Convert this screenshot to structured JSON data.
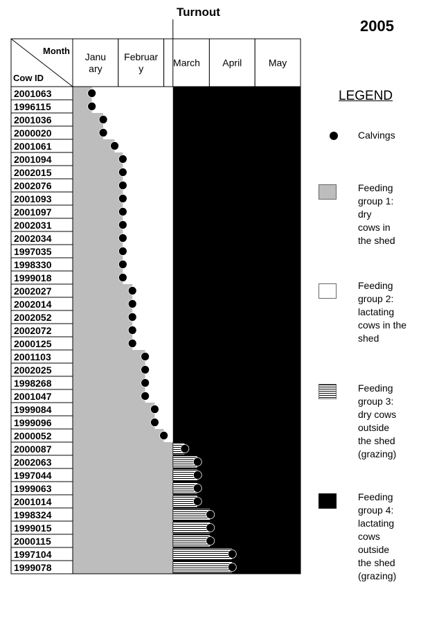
{
  "header": {
    "turnout_label": "Turnout",
    "year": "2005"
  },
  "legend": {
    "title": "LEGEND",
    "items": [
      {
        "kind": "dot",
        "label": "Calvings"
      },
      {
        "kind": "grey",
        "label": "Feeding group 1: dry cows in the shed",
        "lines": [
          "Feeding",
          "group 1:",
          "dry",
          "cows in",
          "the shed"
        ]
      },
      {
        "kind": "white",
        "label": "Feeding group 2: lactating cows in the shed",
        "lines": [
          "Feeding",
          "group 2:",
          "lactating",
          "cows in the",
          "shed"
        ]
      },
      {
        "kind": "striped",
        "label": "Feeding group 3: dry cows outside the shed (grazing)",
        "lines": [
          "Feeding",
          "group 3:",
          "dry cows",
          "outside",
          "the shed",
          "(grazing)"
        ]
      },
      {
        "kind": "black",
        "label": "Feeding group 4: lactating cows outside the shed (grazing)",
        "lines": [
          "Feeding",
          "group 4:",
          "lactating",
          "cows",
          "outside",
          "the shed",
          "(grazing)"
        ]
      }
    ]
  },
  "colors": {
    "group1": "#bdbdbd",
    "group2": "#ffffff",
    "group3_stripe": "#000000",
    "group4": "#000000"
  },
  "chart_data": {
    "type": "table",
    "corner_top": "Month",
    "corner_bottom": "Cow ID",
    "month_headers": [
      {
        "lines": [
          "Janu",
          "ary"
        ]
      },
      {
        "lines": [
          "Februar",
          "y"
        ]
      },
      {
        "lines": [
          "March"
        ]
      },
      {
        "lines": [
          "April"
        ]
      },
      {
        "lines": [
          "May"
        ]
      }
    ],
    "x_unit": "months since 1 January (0 = start of January, 5 = end of May)",
    "turnout_month": 2.2,
    "cows": [
      {
        "id": "2001063",
        "calving": 0.42
      },
      {
        "id": "1996115",
        "calving": 0.42
      },
      {
        "id": "2001036",
        "calving": 0.67
      },
      {
        "id": "2000020",
        "calving": 0.67
      },
      {
        "id": "2001061",
        "calving": 0.92
      },
      {
        "id": "2001094",
        "calving": 1.1
      },
      {
        "id": "2002015",
        "calving": 1.1
      },
      {
        "id": "2002076",
        "calving": 1.1
      },
      {
        "id": "2001093",
        "calving": 1.1
      },
      {
        "id": "2001097",
        "calving": 1.1
      },
      {
        "id": "2002031",
        "calving": 1.1
      },
      {
        "id": "2002034",
        "calving": 1.1
      },
      {
        "id": "1997035",
        "calving": 1.1
      },
      {
        "id": "1998330",
        "calving": 1.1
      },
      {
        "id": "1999018",
        "calving": 1.1
      },
      {
        "id": "2002027",
        "calving": 1.31
      },
      {
        "id": "2002014",
        "calving": 1.31
      },
      {
        "id": "2002052",
        "calving": 1.31
      },
      {
        "id": "2002072",
        "calving": 1.31
      },
      {
        "id": "2000125",
        "calving": 1.31
      },
      {
        "id": "2001103",
        "calving": 1.59
      },
      {
        "id": "2002025",
        "calving": 1.59
      },
      {
        "id": "1998268",
        "calving": 1.59
      },
      {
        "id": "2001047",
        "calving": 1.59
      },
      {
        "id": "1999084",
        "calving": 1.8
      },
      {
        "id": "1999096",
        "calving": 1.8
      },
      {
        "id": "2000052",
        "calving": 2.0
      },
      {
        "id": "2000087",
        "calving": 2.46
      },
      {
        "id": "2002063",
        "calving": 2.74
      },
      {
        "id": "1997044",
        "calving": 2.74
      },
      {
        "id": "1999063",
        "calving": 2.74
      },
      {
        "id": "2001014",
        "calving": 2.74
      },
      {
        "id": "1998324",
        "calving": 3.02
      },
      {
        "id": "1999015",
        "calving": 3.02
      },
      {
        "id": "2000115",
        "calving": 3.02
      },
      {
        "id": "1997104",
        "calving": 3.5
      },
      {
        "id": "1999078",
        "calving": 3.5
      }
    ]
  }
}
